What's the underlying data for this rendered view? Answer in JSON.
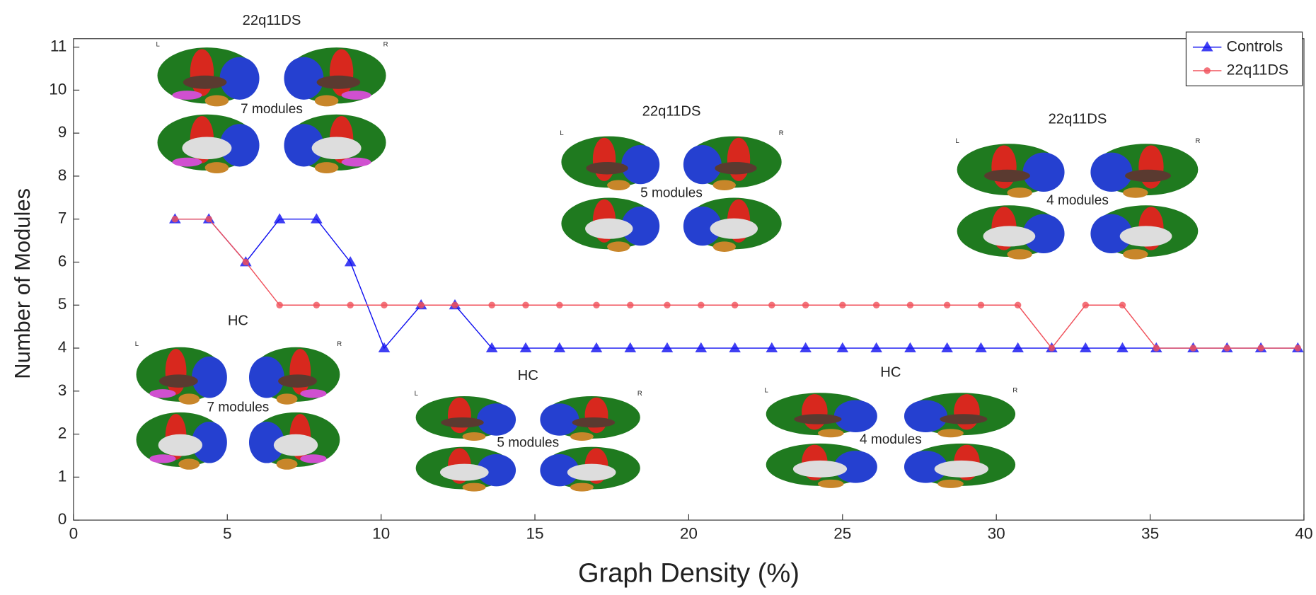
{
  "chart_data": {
    "type": "line",
    "xlabel": "Graph Density (%)",
    "ylabel": "Number of Modules",
    "x": [
      3.3,
      4.4,
      5.6,
      6.7,
      7.9,
      9.0,
      10.1,
      11.3,
      12.4,
      13.6,
      14.7,
      15.8,
      17.0,
      18.1,
      19.3,
      20.4,
      21.5,
      22.7,
      23.8,
      25.0,
      26.1,
      27.2,
      28.4,
      29.5,
      30.7,
      31.8,
      32.9,
      34.1,
      35.2,
      36.4,
      37.5,
      38.6,
      39.8
    ],
    "series": [
      {
        "name": "Controls",
        "color": "#1010f0",
        "marker": "triangle",
        "values": [
          7,
          7,
          6,
          7,
          7,
          6,
          4,
          5,
          5,
          4,
          4,
          4,
          4,
          4,
          4,
          4,
          4,
          4,
          4,
          4,
          4,
          4,
          4,
          4,
          4,
          4,
          4,
          4,
          4,
          4,
          4,
          4,
          4
        ]
      },
      {
        "name": "22q11DS",
        "color": "#f0505a",
        "marker": "circle",
        "values": [
          7,
          7,
          6,
          5,
          5,
          5,
          5,
          5,
          5,
          5,
          5,
          5,
          5,
          5,
          5,
          5,
          5,
          5,
          5,
          5,
          5,
          5,
          5,
          5,
          5,
          4,
          5,
          5,
          4,
          4,
          4,
          4,
          4
        ]
      }
    ],
    "xlim": [
      0,
      40
    ],
    "xticks": [
      0,
      5,
      10,
      15,
      20,
      25,
      30,
      35,
      40
    ],
    "ylim": [
      0,
      11
    ],
    "yticks": [
      0,
      1,
      2,
      3,
      4,
      5,
      6,
      7,
      8,
      9,
      10,
      11
    ],
    "legend": "upper right",
    "insets": [
      {
        "title": "22q11DS",
        "left": "L",
        "right": "R",
        "modules": "7 modules"
      },
      {
        "title": "HC",
        "left": "L",
        "right": "R",
        "modules": "7 modules"
      },
      {
        "title": "22q11DS",
        "left": "L",
        "right": "R",
        "modules": "5 modules"
      },
      {
        "title": "HC",
        "left": "L",
        "right": "R",
        "modules": "5 modules"
      },
      {
        "title": "22q11DS",
        "left": "L",
        "right": "R",
        "modules": "4 modules"
      },
      {
        "title": "HC",
        "left": "L",
        "right": "R",
        "modules": "4 modules"
      }
    ]
  }
}
